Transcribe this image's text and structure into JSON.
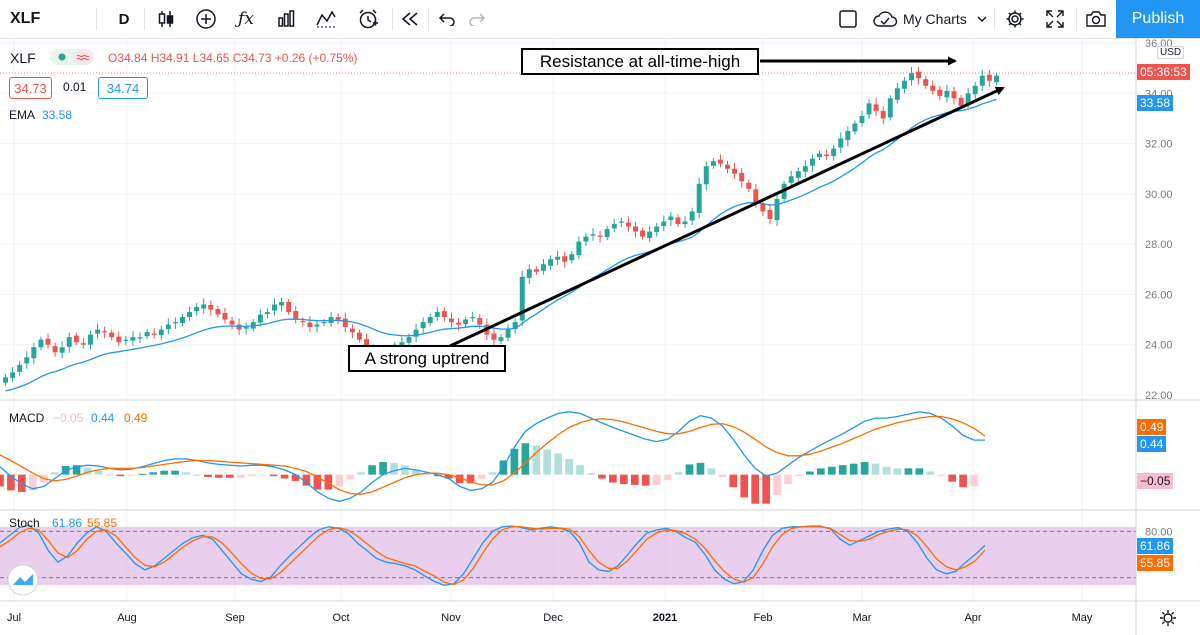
{
  "toolbar": {
    "symbol": "XLF",
    "interval": "D",
    "layout_name": "My Charts",
    "publish_label": "Publish",
    "icons": [
      "candles-icon",
      "add-indicator-icon",
      "fx-icon",
      "templates-icon",
      "compare-icon",
      "alert-icon",
      "replay-icon",
      "undo-icon",
      "redo-icon",
      "square-icon",
      "cloud-icon",
      "chevron-down-icon",
      "gear-icon",
      "fullscreen-icon",
      "camera-icon"
    ]
  },
  "legend": {
    "symbol": "XLF",
    "ohlc_text": "O34.84 H34.91 L34.65 C34.73 +0.26 (+0.75%)",
    "bid": "34.73",
    "spread": "0.01",
    "ask": "34.74",
    "ema_label": "EMA",
    "ema_value": "33.58",
    "macd_label": "MACD",
    "macd_hist": "−0.05",
    "macd_line": "0.44",
    "macd_signal": "0.49",
    "stoch_label": "Stoch",
    "stoch_k": "61.86",
    "stoch_d": "55.85"
  },
  "price_scale": {
    "currency": "USD",
    "current_price_timer": "05:36:53",
    "ema_tag": "33.58",
    "macd_tags": [
      "0.49",
      "0.44",
      "−0.05"
    ],
    "stoch_tags": [
      "61.86",
      "55.85"
    ]
  },
  "annotations": {
    "resistance": "Resistance at all-time-high",
    "uptrend": "A strong uptrend"
  },
  "colors": {
    "up": "#26a69a",
    "down": "#ef5350",
    "ema": "#2196f3",
    "macd_line": "#2196f3",
    "signal_line": "#ff6d00",
    "stoch_k": "#2196f3",
    "stoch_d": "#ff6d00",
    "stoch_band": "#e1bee7",
    "accent": "#2196f3"
  },
  "chart_data": {
    "type": "candlestick",
    "symbol": "XLF",
    "interval": "1D",
    "x_tick_labels": [
      "Jul",
      "Aug",
      "Sep",
      "Oct",
      "Nov",
      "Dec",
      "2021",
      "Feb",
      "Mar",
      "Apr",
      "May"
    ],
    "y_ticks": [
      22,
      24,
      26,
      28,
      30,
      32,
      34,
      36
    ],
    "ylim": [
      21.8,
      36.2
    ],
    "price_closes": [
      22.7,
      22.9,
      23.2,
      23.5,
      23.9,
      24.2,
      24.0,
      23.7,
      23.9,
      24.3,
      24.1,
      24.0,
      24.4,
      24.6,
      24.5,
      24.3,
      24.1,
      24.2,
      24.3,
      24.3,
      24.5,
      24.4,
      24.6,
      24.8,
      24.9,
      25.1,
      25.3,
      25.5,
      25.6,
      25.4,
      25.2,
      25.0,
      24.8,
      24.6,
      24.7,
      24.9,
      25.2,
      25.3,
      25.6,
      25.7,
      25.3,
      25.0,
      24.9,
      24.7,
      24.8,
      24.9,
      25.1,
      25.0,
      24.7,
      24.5,
      24.2,
      23.8,
      23.5,
      23.4,
      23.7,
      24.0,
      24.1,
      24.3,
      24.6,
      24.9,
      25.1,
      25.3,
      25.1,
      24.9,
      24.8,
      25.0,
      25.1,
      24.8,
      24.4,
      24.2,
      24.3,
      24.6,
      24.9,
      26.7,
      27.0,
      26.9,
      27.2,
      27.4,
      27.5,
      27.3,
      27.6,
      28.1,
      28.3,
      28.4,
      28.3,
      28.6,
      28.8,
      28.9,
      28.7,
      28.5,
      28.3,
      28.5,
      28.7,
      28.9,
      29.1,
      28.8,
      28.9,
      29.3,
      30.4,
      31.1,
      31.3,
      31.2,
      31.0,
      30.8,
      30.5,
      30.2,
      29.6,
      29.3,
      29.0,
      29.8,
      30.4,
      30.7,
      30.9,
      31.1,
      31.4,
      31.6,
      31.5,
      31.8,
      32.2,
      32.5,
      32.8,
      33.1,
      33.6,
      33.3,
      33.0,
      33.8,
      34.2,
      34.5,
      34.8,
      34.6,
      34.3,
      34.1,
      33.9,
      34.1,
      33.8,
      33.5,
      34.0,
      34.3,
      34.7,
      34.5,
      34.7
    ],
    "ema_last": 33.58,
    "ohlc_last": {
      "open": 34.84,
      "high": 34.91,
      "low": 34.65,
      "close": 34.73,
      "change": 0.26,
      "change_pct": 0.75
    },
    "macd": {
      "macd_line": [
        0.1,
        -0.02,
        -0.12,
        -0.18,
        -0.15,
        -0.05,
        0.05,
        0.1,
        0.12,
        0.11,
        0.08,
        0.06,
        0.07,
        0.1,
        0.14,
        0.18,
        0.2,
        0.2,
        0.18,
        0.15,
        0.13,
        0.12,
        0.11,
        0.12,
        0.12,
        0.1,
        0.06,
        0.0,
        -0.1,
        -0.22,
        -0.3,
        -0.34,
        -0.3,
        -0.22,
        -0.1,
        0.0,
        0.05,
        0.08,
        0.06,
        0.03,
        0.0,
        -0.05,
        -0.15,
        -0.2,
        -0.18,
        -0.1,
        0.1,
        0.35,
        0.55,
        0.65,
        0.72,
        0.78,
        0.8,
        0.78,
        0.72,
        0.66,
        0.6,
        0.55,
        0.5,
        0.45,
        0.42,
        0.45,
        0.55,
        0.68,
        0.75,
        0.72,
        0.62,
        0.45,
        0.25,
        0.08,
        -0.02,
        0.02,
        0.12,
        0.22,
        0.3,
        0.38,
        0.45,
        0.52,
        0.6,
        0.68,
        0.72,
        0.72,
        0.74,
        0.77,
        0.8,
        0.78,
        0.72,
        0.62,
        0.5,
        0.44,
        0.44
      ],
      "signal_line": [
        0.25,
        0.18,
        0.1,
        0.02,
        -0.05,
        -0.08,
        -0.06,
        -0.02,
        0.03,
        0.06,
        0.08,
        0.08,
        0.08,
        0.09,
        0.11,
        0.13,
        0.15,
        0.17,
        0.18,
        0.18,
        0.17,
        0.16,
        0.15,
        0.14,
        0.13,
        0.12,
        0.11,
        0.08,
        0.04,
        -0.03,
        -0.11,
        -0.19,
        -0.24,
        -0.25,
        -0.22,
        -0.16,
        -0.1,
        -0.04,
        0.0,
        0.02,
        0.02,
        0.0,
        -0.04,
        -0.09,
        -0.13,
        -0.13,
        -0.08,
        0.02,
        0.15,
        0.28,
        0.4,
        0.51,
        0.6,
        0.66,
        0.7,
        0.71,
        0.7,
        0.67,
        0.63,
        0.59,
        0.55,
        0.52,
        0.52,
        0.55,
        0.6,
        0.64,
        0.65,
        0.61,
        0.54,
        0.45,
        0.35,
        0.28,
        0.24,
        0.24,
        0.26,
        0.3,
        0.35,
        0.4,
        0.46,
        0.52,
        0.58,
        0.62,
        0.66,
        0.69,
        0.72,
        0.74,
        0.74,
        0.71,
        0.66,
        0.59,
        0.49
      ]
    },
    "stochastic": {
      "k": [
        65,
        75,
        85,
        88,
        78,
        55,
        40,
        48,
        65,
        78,
        86,
        80,
        65,
        52,
        38,
        30,
        35,
        45,
        55,
        65,
        72,
        75,
        70,
        55,
        40,
        25,
        18,
        15,
        20,
        35,
        48,
        60,
        72,
        82,
        86,
        84,
        78,
        65,
        55,
        45,
        40,
        38,
        35,
        30,
        22,
        15,
        10,
        12,
        25,
        45,
        65,
        80,
        86,
        87,
        85,
        82,
        84,
        86,
        84,
        80,
        65,
        40,
        30,
        28,
        35,
        50,
        65,
        78,
        82,
        84,
        80,
        72,
        66,
        50,
        30,
        18,
        12,
        15,
        30,
        55,
        75,
        84,
        86,
        86,
        87,
        87,
        83,
        70,
        62,
        68,
        74,
        80,
        83,
        85,
        80,
        65,
        45,
        30,
        25,
        28,
        40,
        50,
        61.86
      ],
      "d": [
        60,
        68,
        78,
        84,
        82,
        68,
        52,
        46,
        55,
        70,
        80,
        82,
        74,
        60,
        46,
        36,
        34,
        40,
        50,
        60,
        68,
        73,
        73,
        65,
        52,
        38,
        26,
        19,
        18,
        26,
        38,
        50,
        62,
        74,
        82,
        85,
        82,
        74,
        64,
        54,
        46,
        42,
        38,
        35,
        28,
        22,
        14,
        11,
        17,
        32,
        52,
        70,
        82,
        86,
        86,
        84,
        83,
        84,
        84,
        83,
        73,
        55,
        40,
        32,
        32,
        42,
        56,
        70,
        78,
        82,
        81,
        77,
        70,
        58,
        42,
        28,
        18,
        14,
        20,
        38,
        60,
        76,
        84,
        86,
        86,
        86,
        84,
        76,
        68,
        67,
        70,
        76,
        80,
        83,
        82,
        74,
        60,
        44,
        34,
        30,
        34,
        42,
        55.85
      ],
      "upper": 80,
      "lower": 20,
      "ylim": [
        0,
        100
      ]
    }
  }
}
